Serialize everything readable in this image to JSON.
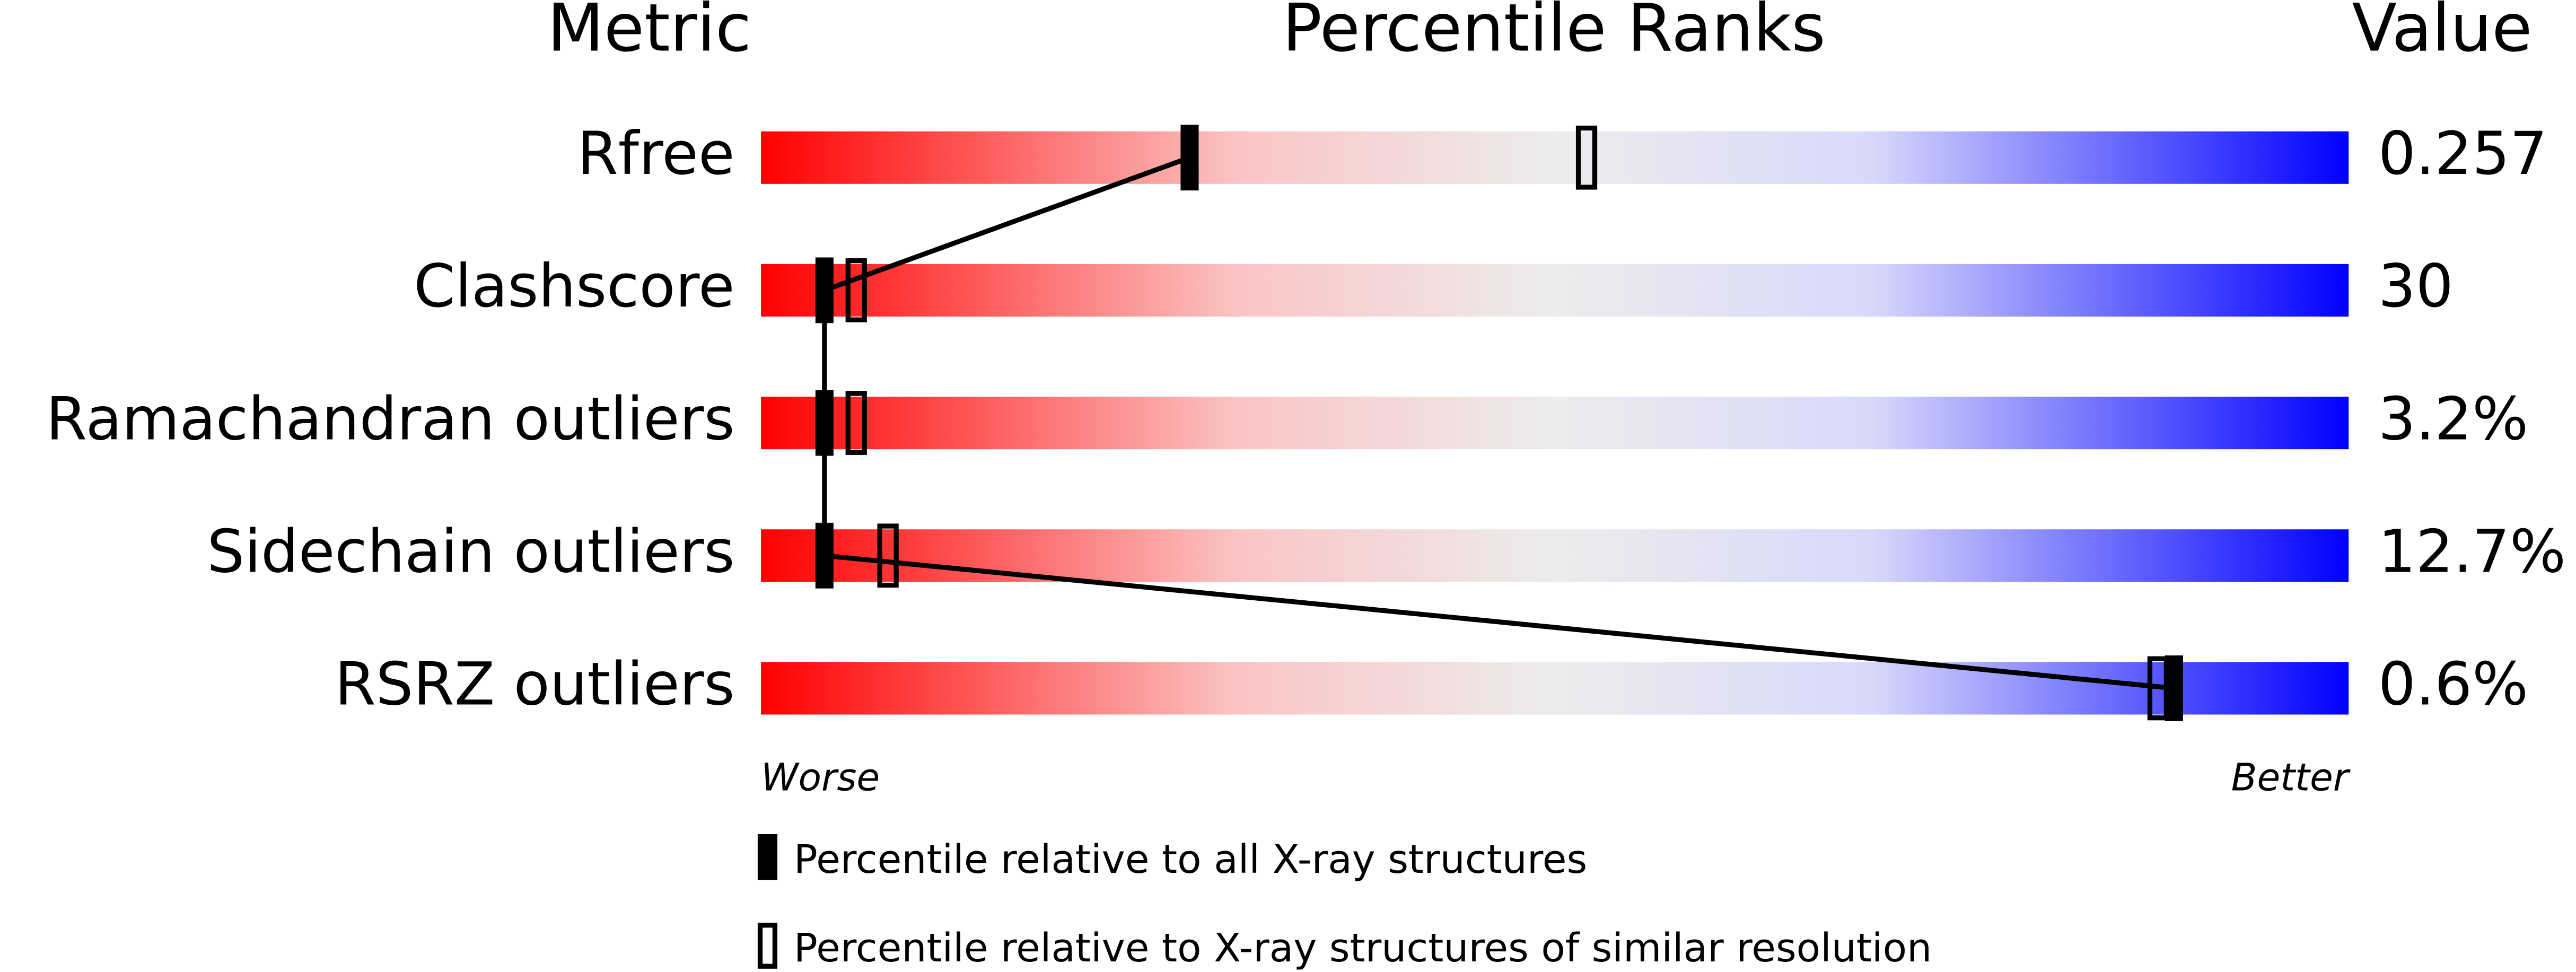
{
  "chart_data": {
    "type": "percentile",
    "title": "Percentile Ranks",
    "metric_header": "Metric",
    "value_header": "Value",
    "categories": [
      "Rfree",
      "Clashscore",
      "Ramachandran outliers",
      "Sidechain outliers",
      "RSRZ outliers"
    ],
    "metric_values": [
      "0.257",
      "30",
      "3.2%",
      "12.7%",
      "0.6%"
    ],
    "xlim": [
      0,
      100
    ],
    "x_left_label": "Worse",
    "x_right_label": "Better",
    "series": [
      {
        "name": "Percentile relative to all X-ray structures",
        "color": "#000000",
        "style": "filled",
        "values": [
          27,
          4,
          4,
          4,
          89
        ]
      },
      {
        "name": "Percentile relative to X-ray structures of similar resolution",
        "color": "#000000",
        "style": "open",
        "values": [
          52,
          6,
          6,
          8,
          88
        ]
      }
    ]
  }
}
